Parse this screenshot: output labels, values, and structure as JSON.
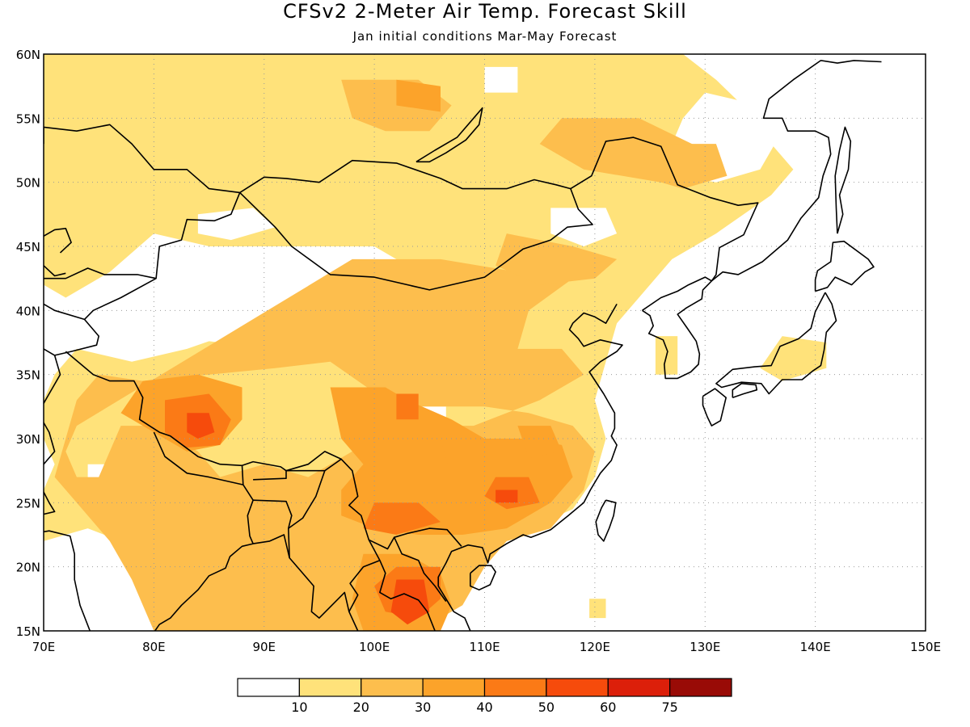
{
  "title": "CFSv2 2-Meter Air Temp. Forecast Skill",
  "subtitle": "Jan initial conditions  Mar-May Forecast",
  "map": {
    "lon_range": [
      70,
      150
    ],
    "lat_range": [
      15,
      60
    ],
    "lon_ticks": [
      "70E",
      "80E",
      "90E",
      "100E",
      "110E",
      "120E",
      "130E",
      "140E",
      "150E"
    ],
    "lat_ticks": [
      "60N",
      "55N",
      "50N",
      "45N",
      "40N",
      "35N",
      "30N",
      "25N",
      "20N",
      "15N"
    ],
    "gridlines": "dotted"
  },
  "colorbar": {
    "colors": [
      "#ffffff",
      "#ffe27a",
      "#fdbe4d",
      "#fca32a",
      "#fb7a16",
      "#f64b0c",
      "#dc1f0a",
      "#990b06"
    ],
    "tick_labels": [
      "10",
      "20",
      "30",
      "40",
      "50",
      "60",
      "75"
    ]
  }
}
